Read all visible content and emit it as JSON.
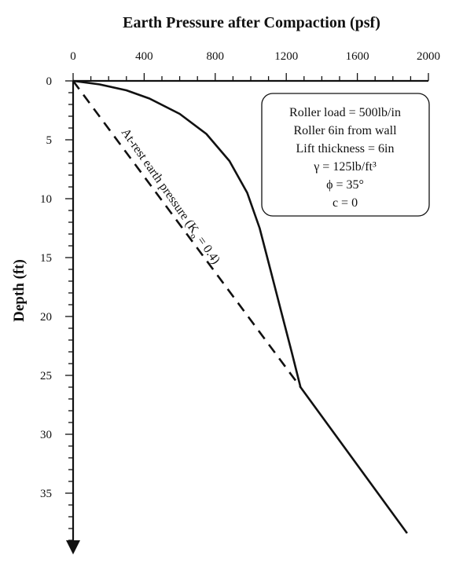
{
  "chart_data": {
    "type": "line",
    "title": "Earth Pressure after Compaction (psf)",
    "xlabel": "Earth Pressure after Compaction (psf)",
    "ylabel": "Depth (ft)",
    "x_axis_position": "top",
    "y_axis_inverted": true,
    "xlim": [
      0,
      2000
    ],
    "ylim": [
      0,
      39
    ],
    "x_ticks": [
      0,
      400,
      800,
      1200,
      1600,
      2000
    ],
    "y_ticks": [
      0,
      5,
      10,
      15,
      20,
      25,
      30,
      35
    ],
    "grid": false,
    "series": [
      {
        "style": "solid",
        "color": "#111111",
        "points": [
          {
            "x": 0,
            "y": 0
          },
          {
            "x": 150,
            "y": 0.3
          },
          {
            "x": 300,
            "y": 0.8
          },
          {
            "x": 430,
            "y": 1.5
          },
          {
            "x": 600,
            "y": 2.8
          },
          {
            "x": 750,
            "y": 4.5
          },
          {
            "x": 880,
            "y": 6.8
          },
          {
            "x": 980,
            "y": 9.5
          },
          {
            "x": 1050,
            "y": 12.5
          },
          {
            "x": 1110,
            "y": 16
          },
          {
            "x": 1170,
            "y": 19.5
          },
          {
            "x": 1230,
            "y": 23
          },
          {
            "x": 1280,
            "y": 26
          },
          {
            "x": 1880,
            "y": 38.4
          }
        ]
      },
      {
        "name": "At-rest earth pressure (Kₒ = 0.4)",
        "style": "dashed",
        "color": "#111111",
        "points": [
          {
            "x": 0,
            "y": 0
          },
          {
            "x": 1280,
            "y": 26
          }
        ]
      }
    ],
    "annotations": {
      "dashed_label_main": "At-rest earth pressure (K",
      "dashed_label_sub": "o",
      "dashed_label_tail": " = 0.4)",
      "box_lines": [
        "Roller load = 500lb/in",
        "Roller 6in from wall",
        "Lift thickness = 6in",
        "γ = 125lb/ft³",
        "ϕ = 35°",
        "c = 0"
      ]
    }
  }
}
